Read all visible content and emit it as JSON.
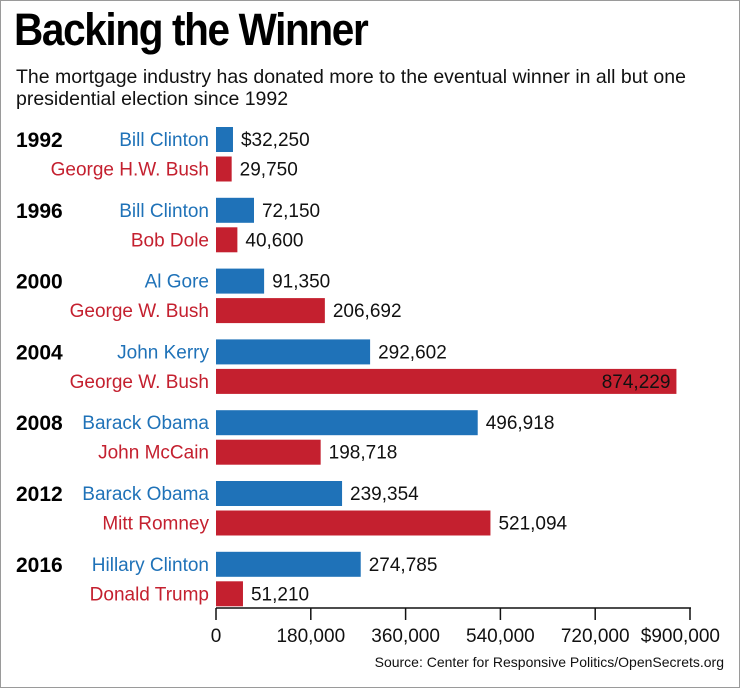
{
  "header": {
    "title": "Backing the Winner",
    "subtitle": "The mortgage industry has donated more to the eventual winner in all but one presidential election since 1992"
  },
  "footer": {
    "source": "Source: Center for Responsive Politics/OpenSecrets.org"
  },
  "colors": {
    "democrat": "#1f72b8",
    "republican": "#c4202f"
  },
  "chart_data": {
    "type": "bar",
    "orientation": "horizontal",
    "title": "Backing the Winner",
    "xlim": [
      0,
      900000
    ],
    "xticks": [
      0,
      180000,
      360000,
      540000,
      720000,
      900000
    ],
    "xtick_labels": [
      "0",
      "180,000",
      "360,000",
      "540,000",
      "720,000",
      "$900,000"
    ],
    "grid": false,
    "elections": [
      {
        "year": "1992",
        "candidates": [
          {
            "name": "Bill Clinton",
            "party": "democrat",
            "value": 32250,
            "label": "$32,250"
          },
          {
            "name": "George H.W. Bush",
            "party": "republican",
            "value": 29750,
            "label": "29,750"
          }
        ]
      },
      {
        "year": "1996",
        "candidates": [
          {
            "name": "Bill Clinton",
            "party": "democrat",
            "value": 72150,
            "label": "72,150"
          },
          {
            "name": "Bob Dole",
            "party": "republican",
            "value": 40600,
            "label": "40,600"
          }
        ]
      },
      {
        "year": "2000",
        "candidates": [
          {
            "name": "Al Gore",
            "party": "democrat",
            "value": 91350,
            "label": "91,350"
          },
          {
            "name": "George W. Bush",
            "party": "republican",
            "value": 206692,
            "label": "206,692"
          }
        ]
      },
      {
        "year": "2004",
        "candidates": [
          {
            "name": "John Kerry",
            "party": "democrat",
            "value": 292602,
            "label": "292,602"
          },
          {
            "name": "George W. Bush",
            "party": "republican",
            "value": 874229,
            "label": "874,229"
          }
        ]
      },
      {
        "year": "2008",
        "candidates": [
          {
            "name": "Barack Obama",
            "party": "democrat",
            "value": 496918,
            "label": "496,918"
          },
          {
            "name": "John McCain",
            "party": "republican",
            "value": 198718,
            "label": "198,718"
          }
        ]
      },
      {
        "year": "2012",
        "candidates": [
          {
            "name": "Barack Obama",
            "party": "democrat",
            "value": 239354,
            "label": "239,354"
          },
          {
            "name": "Mitt Romney",
            "party": "republican",
            "value": 521094,
            "label": "521,094"
          }
        ]
      },
      {
        "year": "2016",
        "candidates": [
          {
            "name": "Hillary Clinton",
            "party": "democrat",
            "value": 274785,
            "label": "274,785"
          },
          {
            "name": "Donald Trump",
            "party": "republican",
            "value": 51210,
            "label": "51,210"
          }
        ]
      }
    ]
  }
}
